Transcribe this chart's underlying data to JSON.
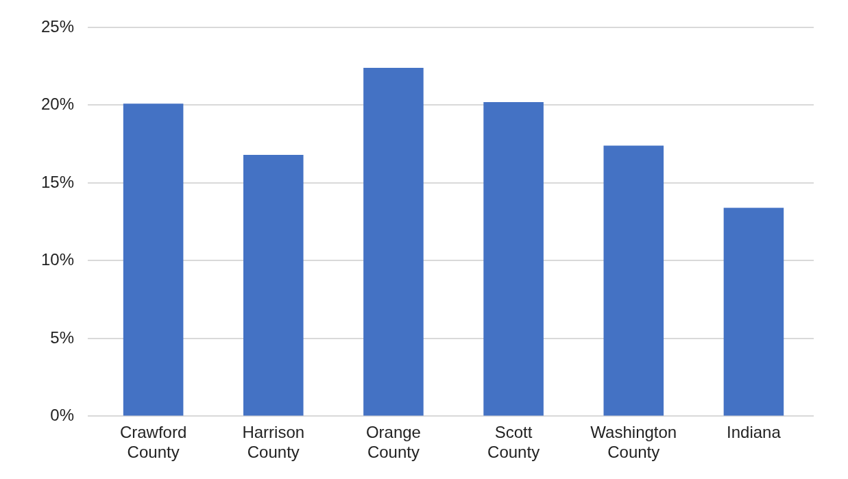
{
  "chart_data": {
    "type": "bar",
    "categories": [
      "Crawford County",
      "Harrison County",
      "Orange County",
      "Scott County",
      "Washington County",
      "Indiana"
    ],
    "values": [
      20.1,
      16.8,
      22.4,
      20.2,
      17.4,
      13.4
    ],
    "color": "#4472c4",
    "ylim": [
      0,
      25
    ],
    "yticks": [
      {
        "value": 0,
        "label": "0%"
      },
      {
        "value": 5,
        "label": "5%"
      },
      {
        "value": 10,
        "label": "10%"
      },
      {
        "value": 15,
        "label": "15%"
      },
      {
        "value": 20,
        "label": "20%"
      },
      {
        "value": 25,
        "label": "25%"
      }
    ],
    "grid": "y"
  }
}
